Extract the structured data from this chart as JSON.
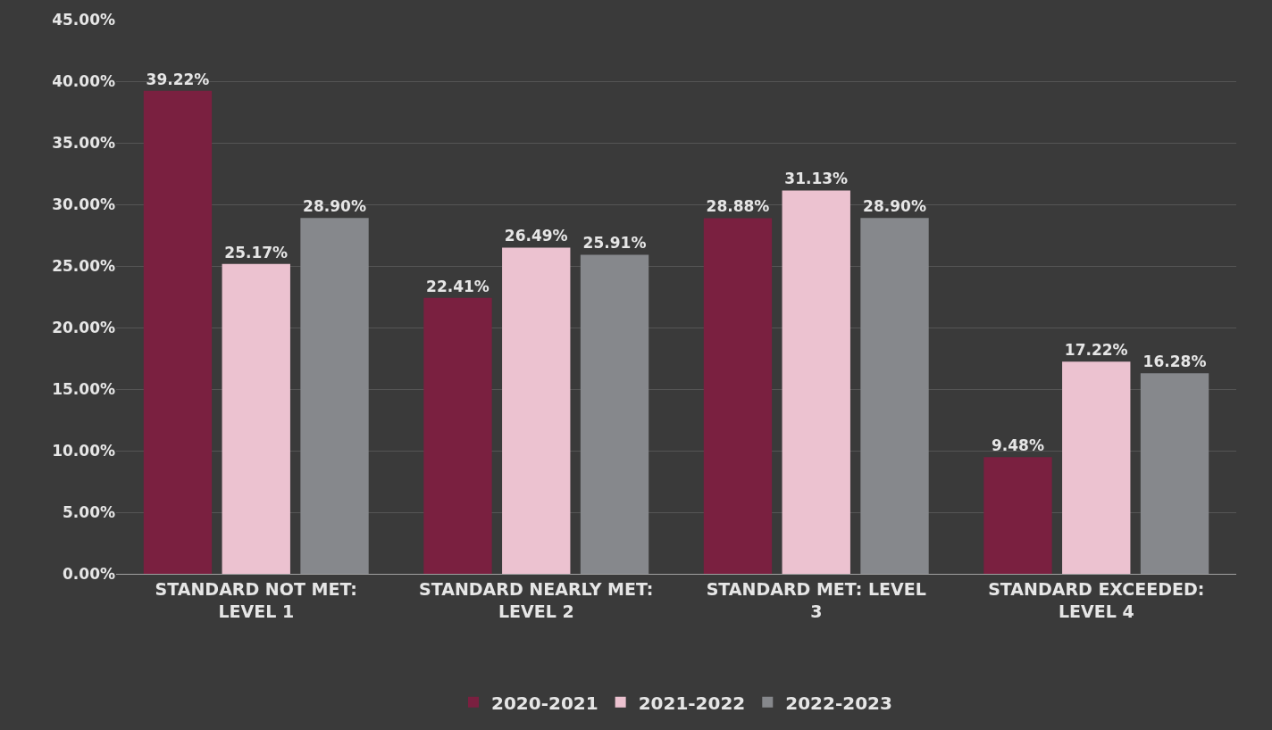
{
  "chart_data": {
    "type": "bar",
    "categories": [
      "STANDARD NOT MET: LEVEL 1",
      "STANDARD NEARLY MET: LEVEL 2",
      "STANDARD MET: LEVEL 3",
      "STANDARD EXCEEDED: LEVEL 4"
    ],
    "series": [
      {
        "name": "2020-2021",
        "color": "#7a2040",
        "values": [
          39.22,
          22.41,
          28.88,
          9.48
        ],
        "value_labels": [
          "39.22%",
          "22.41%",
          "28.88%",
          "9.48%"
        ]
      },
      {
        "name": "2021-2022",
        "color": "#ecc2d0",
        "values": [
          25.17,
          26.49,
          31.13,
          17.22
        ],
        "value_labels": [
          "25.17%",
          "26.49%",
          "31.13%",
          "17.22%"
        ]
      },
      {
        "name": "2022-2023",
        "color": "#86888c",
        "values": [
          28.9,
          25.91,
          28.9,
          16.28
        ],
        "value_labels": [
          "28.90%",
          "25.91%",
          "28.90%",
          "16.28%"
        ]
      }
    ],
    "ylim": [
      0,
      45
    ],
    "yticks": [
      {
        "value": 0,
        "label": "0.00%"
      },
      {
        "value": 5,
        "label": "5.00%"
      },
      {
        "value": 10,
        "label": "10.00%"
      },
      {
        "value": 15,
        "label": "15.00%"
      },
      {
        "value": 20,
        "label": "20.00%"
      },
      {
        "value": 25,
        "label": "25.00%"
      },
      {
        "value": 30,
        "label": "30.00%"
      },
      {
        "value": 35,
        "label": "35.00%"
      },
      {
        "value": 40,
        "label": "40.00%"
      },
      {
        "value": 45,
        "label": "45.00%"
      }
    ],
    "grid": "y",
    "legend": "bottom"
  }
}
